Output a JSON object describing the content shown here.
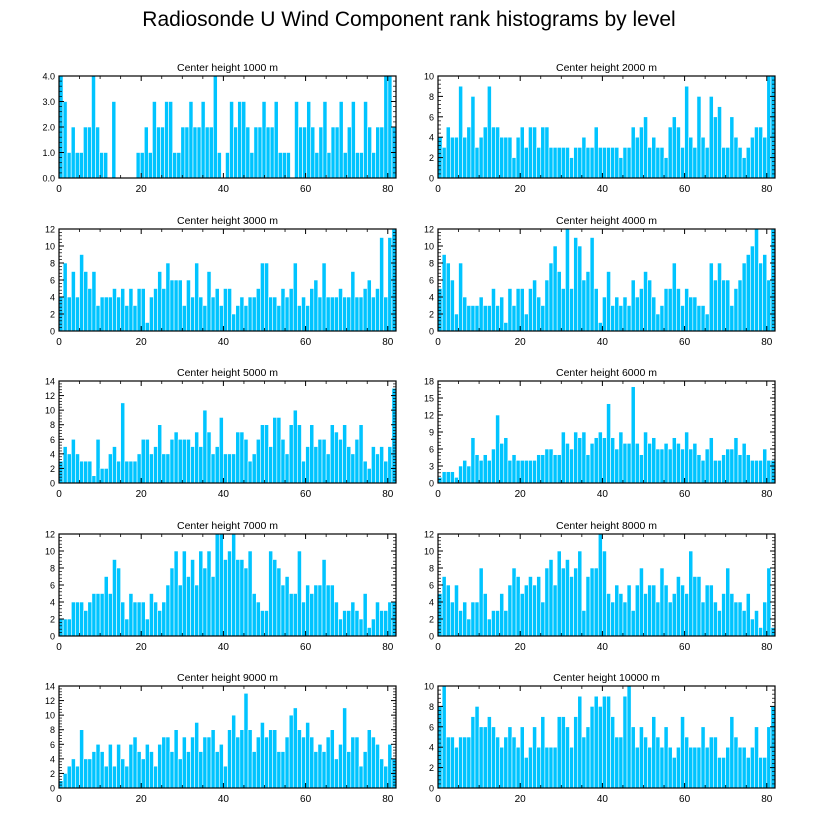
{
  "main_title": "Radiosonde U Wind Component rank histograms by level",
  "bar_color": "#00c4ff",
  "bar_edge_color": "#ffffff",
  "chart_data": [
    {
      "type": "bar",
      "title": "Center height 1000 m",
      "xlim": [
        0,
        82
      ],
      "xticks": [
        0,
        20,
        40,
        60,
        80
      ],
      "ylim": [
        0,
        4
      ],
      "yticks": [
        0,
        1,
        2,
        3,
        4
      ],
      "ytick_labels": [
        "0.0",
        "1.0",
        "2.0",
        "3.0",
        "4.0"
      ],
      "values": [
        4,
        3,
        1,
        2,
        1,
        1,
        2,
        2,
        4,
        2,
        1,
        1,
        0,
        3,
        0,
        0,
        0,
        0,
        0,
        1,
        1,
        2,
        1,
        3,
        2,
        2,
        3,
        3,
        1,
        1,
        2,
        2,
        3,
        2,
        2,
        3,
        2,
        2,
        4,
        1,
        0,
        1,
        3,
        2,
        3,
        3,
        2,
        1,
        2,
        2,
        3,
        2,
        2,
        3,
        1,
        1,
        1,
        0,
        3,
        2,
        2,
        3,
        2,
        1,
        2,
        3,
        1,
        2,
        2,
        3,
        1,
        2,
        3,
        1,
        1,
        3,
        2,
        1,
        2,
        2,
        4,
        4,
        2
      ]
    },
    {
      "type": "bar",
      "title": "Center height 2000 m",
      "xlim": [
        0,
        82
      ],
      "xticks": [
        0,
        20,
        40,
        60,
        80
      ],
      "ylim": [
        0,
        10
      ],
      "yticks": [
        0,
        2,
        4,
        6,
        8,
        10
      ],
      "ytick_labels": [
        "0",
        "2",
        "4",
        "6",
        "8",
        "10"
      ],
      "values": [
        4,
        3,
        5,
        4,
        4,
        9,
        4,
        5,
        8,
        3,
        4,
        5,
        9,
        5,
        5,
        4,
        4,
        4,
        2,
        4,
        5,
        3,
        5,
        5,
        3,
        5,
        5,
        3,
        3,
        3,
        3,
        3,
        2,
        3,
        3,
        4,
        3,
        3,
        5,
        3,
        3,
        3,
        3,
        3,
        2,
        3,
        3,
        5,
        4,
        5,
        6,
        3,
        4,
        3,
        3,
        2,
        5,
        6,
        5,
        3,
        9,
        4,
        3,
        8,
        4,
        3,
        8,
        6,
        7,
        3,
        3,
        6,
        4,
        3,
        2,
        3,
        4,
        5,
        5,
        4,
        10,
        10
      ]
    },
    {
      "type": "bar",
      "title": "Center height 3000 m",
      "xlim": [
        0,
        82
      ],
      "xticks": [
        0,
        20,
        40,
        60,
        80
      ],
      "ylim": [
        0,
        12
      ],
      "yticks": [
        0,
        2,
        4,
        6,
        8,
        10,
        12
      ],
      "ytick_labels": [
        "0",
        "2",
        "4",
        "6",
        "8",
        "10",
        "12"
      ],
      "values": [
        4,
        8,
        4,
        7,
        4,
        9,
        7,
        5,
        7,
        3,
        4,
        4,
        4,
        5,
        4,
        5,
        3,
        5,
        3,
        5,
        5,
        1,
        4,
        5,
        7,
        5,
        8,
        6,
        6,
        6,
        3,
        6,
        4,
        8,
        4,
        3,
        7,
        4,
        5,
        3,
        5,
        5,
        2,
        3,
        4,
        3,
        4,
        4,
        5,
        8,
        8,
        4,
        4,
        3,
        5,
        4,
        5,
        8,
        3,
        4,
        3,
        5,
        6,
        4,
        8,
        4,
        4,
        4,
        5,
        4,
        4,
        7,
        4,
        4,
        5,
        6,
        4,
        5,
        11,
        4,
        11,
        12
      ]
    },
    {
      "type": "bar",
      "title": "Center height 4000 m",
      "xlim": [
        0,
        82
      ],
      "xticks": [
        0,
        20,
        40,
        60,
        80
      ],
      "ylim": [
        0,
        12
      ],
      "yticks": [
        0,
        2,
        4,
        6,
        8,
        10,
        12
      ],
      "ytick_labels": [
        "0",
        "2",
        "4",
        "6",
        "8",
        "10",
        "12"
      ],
      "values": [
        5,
        9,
        8,
        6,
        2,
        8,
        4,
        3,
        3,
        3,
        4,
        3,
        3,
        5,
        3,
        4,
        1,
        5,
        3,
        5,
        5,
        2,
        5,
        6,
        4,
        3,
        6,
        8,
        10,
        7,
        5,
        12,
        5,
        11,
        10,
        6,
        7,
        11,
        5,
        1,
        4,
        7,
        3,
        4,
        3,
        4,
        3,
        6,
        4,
        5,
        7,
        6,
        4,
        2,
        3,
        5,
        5,
        8,
        5,
        3,
        5,
        4,
        4,
        3,
        3,
        2,
        8,
        6,
        8,
        6,
        6,
        3,
        5,
        6,
        8,
        9,
        10,
        12,
        8,
        9,
        6,
        12
      ]
    },
    {
      "type": "bar",
      "title": "Center height 5000 m",
      "xlim": [
        0,
        82
      ],
      "xticks": [
        0,
        20,
        40,
        60,
        80
      ],
      "ylim": [
        0,
        14
      ],
      "yticks": [
        0,
        2,
        4,
        6,
        8,
        10,
        12,
        14
      ],
      "ytick_labels": [
        "0",
        "2",
        "4",
        "6",
        "8",
        "10",
        "12",
        "14"
      ],
      "values": [
        3,
        5,
        4,
        6,
        4,
        3,
        3,
        3,
        1,
        6,
        2,
        2,
        4,
        5,
        3,
        11,
        3,
        3,
        3,
        4,
        6,
        6,
        4,
        5,
        8,
        4,
        4,
        6,
        7,
        6,
        6,
        6,
        5,
        7,
        5,
        10,
        7,
        4,
        5,
        9,
        4,
        4,
        4,
        7,
        7,
        6,
        3,
        4,
        6,
        8,
        8,
        5,
        9,
        9,
        6,
        4,
        8,
        10,
        8,
        3,
        5,
        8,
        5,
        6,
        6,
        4,
        8,
        7,
        6,
        8,
        5,
        4,
        6,
        8,
        3,
        2,
        5,
        4,
        5,
        3,
        5,
        13
      ]
    },
    {
      "type": "bar",
      "title": "Center height 6000 m",
      "xlim": [
        0,
        82
      ],
      "xticks": [
        0,
        20,
        40,
        60,
        80
      ],
      "ylim": [
        0,
        18
      ],
      "yticks": [
        0,
        3,
        6,
        9,
        12,
        15,
        18
      ],
      "ytick_labels": [
        "0",
        "3",
        "6",
        "9",
        "12",
        "15",
        "18"
      ],
      "values": [
        1,
        2,
        2,
        2,
        1,
        3,
        4,
        3,
        8,
        5,
        4,
        5,
        4,
        6,
        12,
        7,
        8,
        4,
        5,
        4,
        4,
        4,
        4,
        4,
        5,
        5,
        6,
        6,
        5,
        5,
        9,
        7,
        6,
        9,
        8,
        9,
        5,
        7,
        8,
        9,
        8,
        14,
        8,
        6,
        9,
        7,
        7,
        17,
        7,
        5,
        9,
        7,
        8,
        6,
        6,
        7,
        6,
        8,
        7,
        6,
        9,
        6,
        7,
        5,
        4,
        6,
        8,
        4,
        4,
        5,
        6,
        6,
        8,
        5,
        7,
        5,
        4,
        4,
        4,
        6,
        4,
        4
      ]
    },
    {
      "type": "bar",
      "title": "Center height 7000 m",
      "xlim": [
        0,
        82
      ],
      "xticks": [
        0,
        20,
        40,
        60,
        80
      ],
      "ylim": [
        0,
        12
      ],
      "yticks": [
        0,
        2,
        4,
        6,
        8,
        10,
        12
      ],
      "ytick_labels": [
        "0",
        "2",
        "4",
        "6",
        "8",
        "10",
        "12"
      ],
      "values": [
        2,
        2,
        2,
        4,
        4,
        4,
        3,
        4,
        5,
        5,
        5,
        7,
        5,
        9,
        8,
        4,
        2,
        5,
        4,
        4,
        4,
        2,
        5,
        4,
        3,
        4,
        6,
        8,
        10,
        6,
        10,
        7,
        9,
        6,
        10,
        8,
        10,
        7,
        12,
        12,
        9,
        10,
        12,
        9,
        9,
        8,
        10,
        5,
        4,
        3,
        3,
        10,
        9,
        8,
        6,
        7,
        5,
        5,
        10,
        4,
        6,
        5,
        6,
        6,
        9,
        6,
        6,
        4,
        2,
        3,
        3,
        4,
        3,
        2,
        5,
        1,
        2,
        4,
        3,
        3,
        4,
        4
      ]
    },
    {
      "type": "bar",
      "title": "Center height 8000 m",
      "xlim": [
        0,
        82
      ],
      "xticks": [
        0,
        20,
        40,
        60,
        80
      ],
      "ylim": [
        0,
        12
      ],
      "yticks": [
        0,
        2,
        4,
        6,
        8,
        10,
        12
      ],
      "ytick_labels": [
        "0",
        "2",
        "4",
        "6",
        "8",
        "10",
        "12"
      ],
      "values": [
        5,
        7,
        6,
        4,
        6,
        3,
        4,
        2,
        4,
        4,
        8,
        5,
        2,
        3,
        3,
        5,
        3,
        6,
        8,
        7,
        5,
        6,
        7,
        6,
        7,
        4,
        8,
        9,
        6,
        10,
        8,
        9,
        7,
        8,
        10,
        3,
        7,
        8,
        8,
        12,
        10,
        5,
        4,
        6,
        5,
        4,
        6,
        3,
        6,
        8,
        5,
        6,
        6,
        4,
        8,
        6,
        4,
        5,
        7,
        6,
        5,
        10,
        7,
        7,
        4,
        6,
        6,
        4,
        3,
        5,
        8,
        5,
        4,
        4,
        3,
        5,
        2,
        3,
        1,
        4,
        8,
        1
      ]
    },
    {
      "type": "bar",
      "title": "Center height 9000 m",
      "xlim": [
        0,
        82
      ],
      "xticks": [
        0,
        20,
        40,
        60,
        80
      ],
      "ylim": [
        0,
        14
      ],
      "yticks": [
        0,
        2,
        4,
        6,
        8,
        10,
        12,
        14
      ],
      "ytick_labels": [
        "0",
        "2",
        "4",
        "6",
        "8",
        "10",
        "12",
        "14"
      ],
      "values": [
        1,
        2,
        3,
        4,
        3,
        8,
        4,
        4,
        5,
        6,
        5,
        3,
        6,
        3,
        6,
        4,
        3,
        6,
        7,
        5,
        4,
        6,
        5,
        3,
        6,
        7,
        7,
        5,
        8,
        4,
        7,
        5,
        7,
        9,
        5,
        7,
        7,
        8,
        5,
        6,
        3,
        8,
        10,
        7,
        8,
        13,
        8,
        5,
        7,
        9,
        7,
        8,
        8,
        5,
        5,
        7,
        10,
        11,
        8,
        7,
        9,
        7,
        5,
        6,
        5,
        7,
        8,
        4,
        6,
        11,
        5,
        7,
        7,
        3,
        5,
        8,
        7,
        6,
        4,
        3,
        6,
        4
      ]
    },
    {
      "type": "bar",
      "title": "Center height 10000 m",
      "xlim": [
        0,
        82
      ],
      "xticks": [
        0,
        20,
        40,
        60,
        80
      ],
      "ylim": [
        0,
        10
      ],
      "yticks": [
        0,
        2,
        4,
        6,
        8,
        10
      ],
      "ytick_labels": [
        "0",
        "2",
        "4",
        "6",
        "8",
        "10"
      ],
      "values": [
        8,
        10,
        5,
        5,
        4,
        5,
        5,
        5,
        7,
        8,
        6,
        6,
        7,
        6,
        5,
        4,
        5,
        6,
        5,
        4,
        6,
        3,
        4,
        6,
        4,
        7,
        4,
        4,
        4,
        7,
        7,
        6,
        4,
        7,
        9,
        5,
        6,
        8,
        9,
        8,
        9,
        9,
        7,
        5,
        5,
        9,
        10,
        6,
        4,
        6,
        5,
        4,
        7,
        5,
        4,
        6,
        4,
        3,
        4,
        7,
        5,
        4,
        4,
        4,
        6,
        4,
        5,
        5,
        3,
        3,
        4,
        7,
        5,
        4,
        4,
        3,
        4,
        6,
        3,
        3,
        6,
        8
      ]
    }
  ]
}
